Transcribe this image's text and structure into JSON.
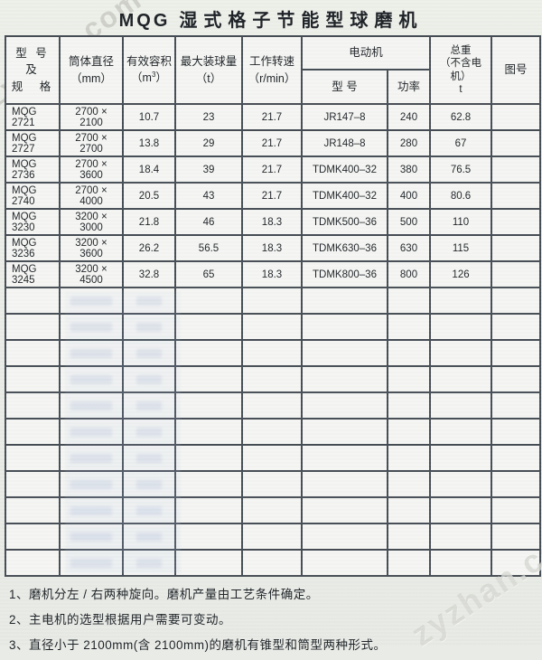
{
  "watermark": "zyzhan.com",
  "title": {
    "prefix": "MQG",
    "main": "湿式格子节能型球磨机"
  },
  "table": {
    "headers": {
      "model": [
        "型 号 及",
        "规　格"
      ],
      "diameter": [
        "筒体直径",
        "（mm）"
      ],
      "volume_line1": "有效容积",
      "volume_unit_open": "（m",
      "volume_unit_sup": "3",
      "volume_unit_close": "）",
      "ball_load": [
        "最大装球量",
        "（t）"
      ],
      "speed": [
        "工作转速",
        "（r/min）"
      ],
      "motor": "电动机",
      "motor_model": "型 号",
      "motor_power": "功率",
      "weight": [
        "总重",
        "（不含电机）",
        "t"
      ],
      "drawing_no": "图号"
    },
    "rows": [
      [
        "MQG 2721",
        "2700 × 2100",
        "10.7",
        "23",
        "21.7",
        "JR147–8",
        "240",
        "62.8",
        ""
      ],
      [
        "MQG 2727",
        "2700 × 2700",
        "13.8",
        "29",
        "21.7",
        "JR148–8",
        "280",
        "67",
        ""
      ],
      [
        "MQG 2736",
        "2700 × 3600",
        "18.4",
        "39",
        "21.7",
        "TDMK400–32",
        "380",
        "76.5",
        ""
      ],
      [
        "MQG 2740",
        "2700 × 4000",
        "20.5",
        "43",
        "21.7",
        "TDMK400–32",
        "400",
        "80.6",
        ""
      ],
      [
        "MQG 3230",
        "3200 × 3000",
        "21.8",
        "46",
        "18.3",
        "TDMK500–36",
        "500",
        "110",
        ""
      ],
      [
        "MQG 3236",
        "3200 × 3600",
        "26.2",
        "56.5",
        "18.3",
        "TDMK630–36",
        "630",
        "115",
        ""
      ],
      [
        "MQG 3245",
        "3200 × 4500",
        "32.8",
        "65",
        "18.3",
        "TDMK800–36",
        "800",
        "126",
        ""
      ]
    ],
    "empty_row_count": 11
  },
  "notes": [
    "1、磨机分左 / 右两种旋向。磨机产量由工艺条件确定。",
    "2、主电机的选型根据用户需要可变动。",
    "3、直径小于 2100mm(含 2100mm)的磨机有锥型和筒型两种形式。"
  ]
}
